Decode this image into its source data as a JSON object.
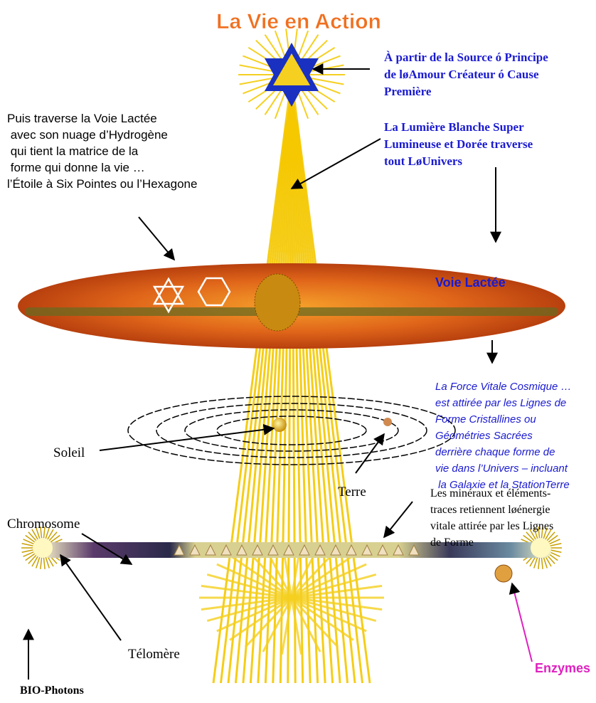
{
  "title": "La Vie en Action",
  "source": {
    "lines": [
      "À partir de la Source ó Principe",
      "de løAmour Créateur ó Cause",
      "Première"
    ]
  },
  "light": {
    "lines": [
      "La Lumière Blanche Super",
      "Lumineuse et Dorée traverse",
      "tout LøUnivers"
    ]
  },
  "milky_way_note": {
    "lines": [
      "Puis traverse la Voie Lactée",
      " avec son nuage d’Hydrogène",
      " qui tient la matrice de la",
      " forme qui donne la vie …",
      "l’Étoile à Six Pointes ou l’Hexagone"
    ]
  },
  "milky_way_label": "Voie Lactée",
  "force": {
    "lines": [
      "La Force Vitale Cosmique …",
      "est attirée par les Lignes de",
      "Forme Cristallines ou",
      "Géométries Sacrées",
      "derrière chaque forme de",
      "vie dans l’Univers – incluant",
      " la Galaxie et la StationTerre"
    ]
  },
  "sun_label": "Soleil",
  "earth_label": "Terre",
  "minerals": {
    "lines": [
      "Les minéraux et éléments-",
      "traces retiennent løénergie",
      "vitale attirée par les Lignes",
      "de Forme"
    ]
  },
  "chromosome_label": "Chromosome",
  "telomere_label": "Télomère",
  "biophotons_label": "BIO-Photons",
  "enzymes_label": "Enzymes"
}
